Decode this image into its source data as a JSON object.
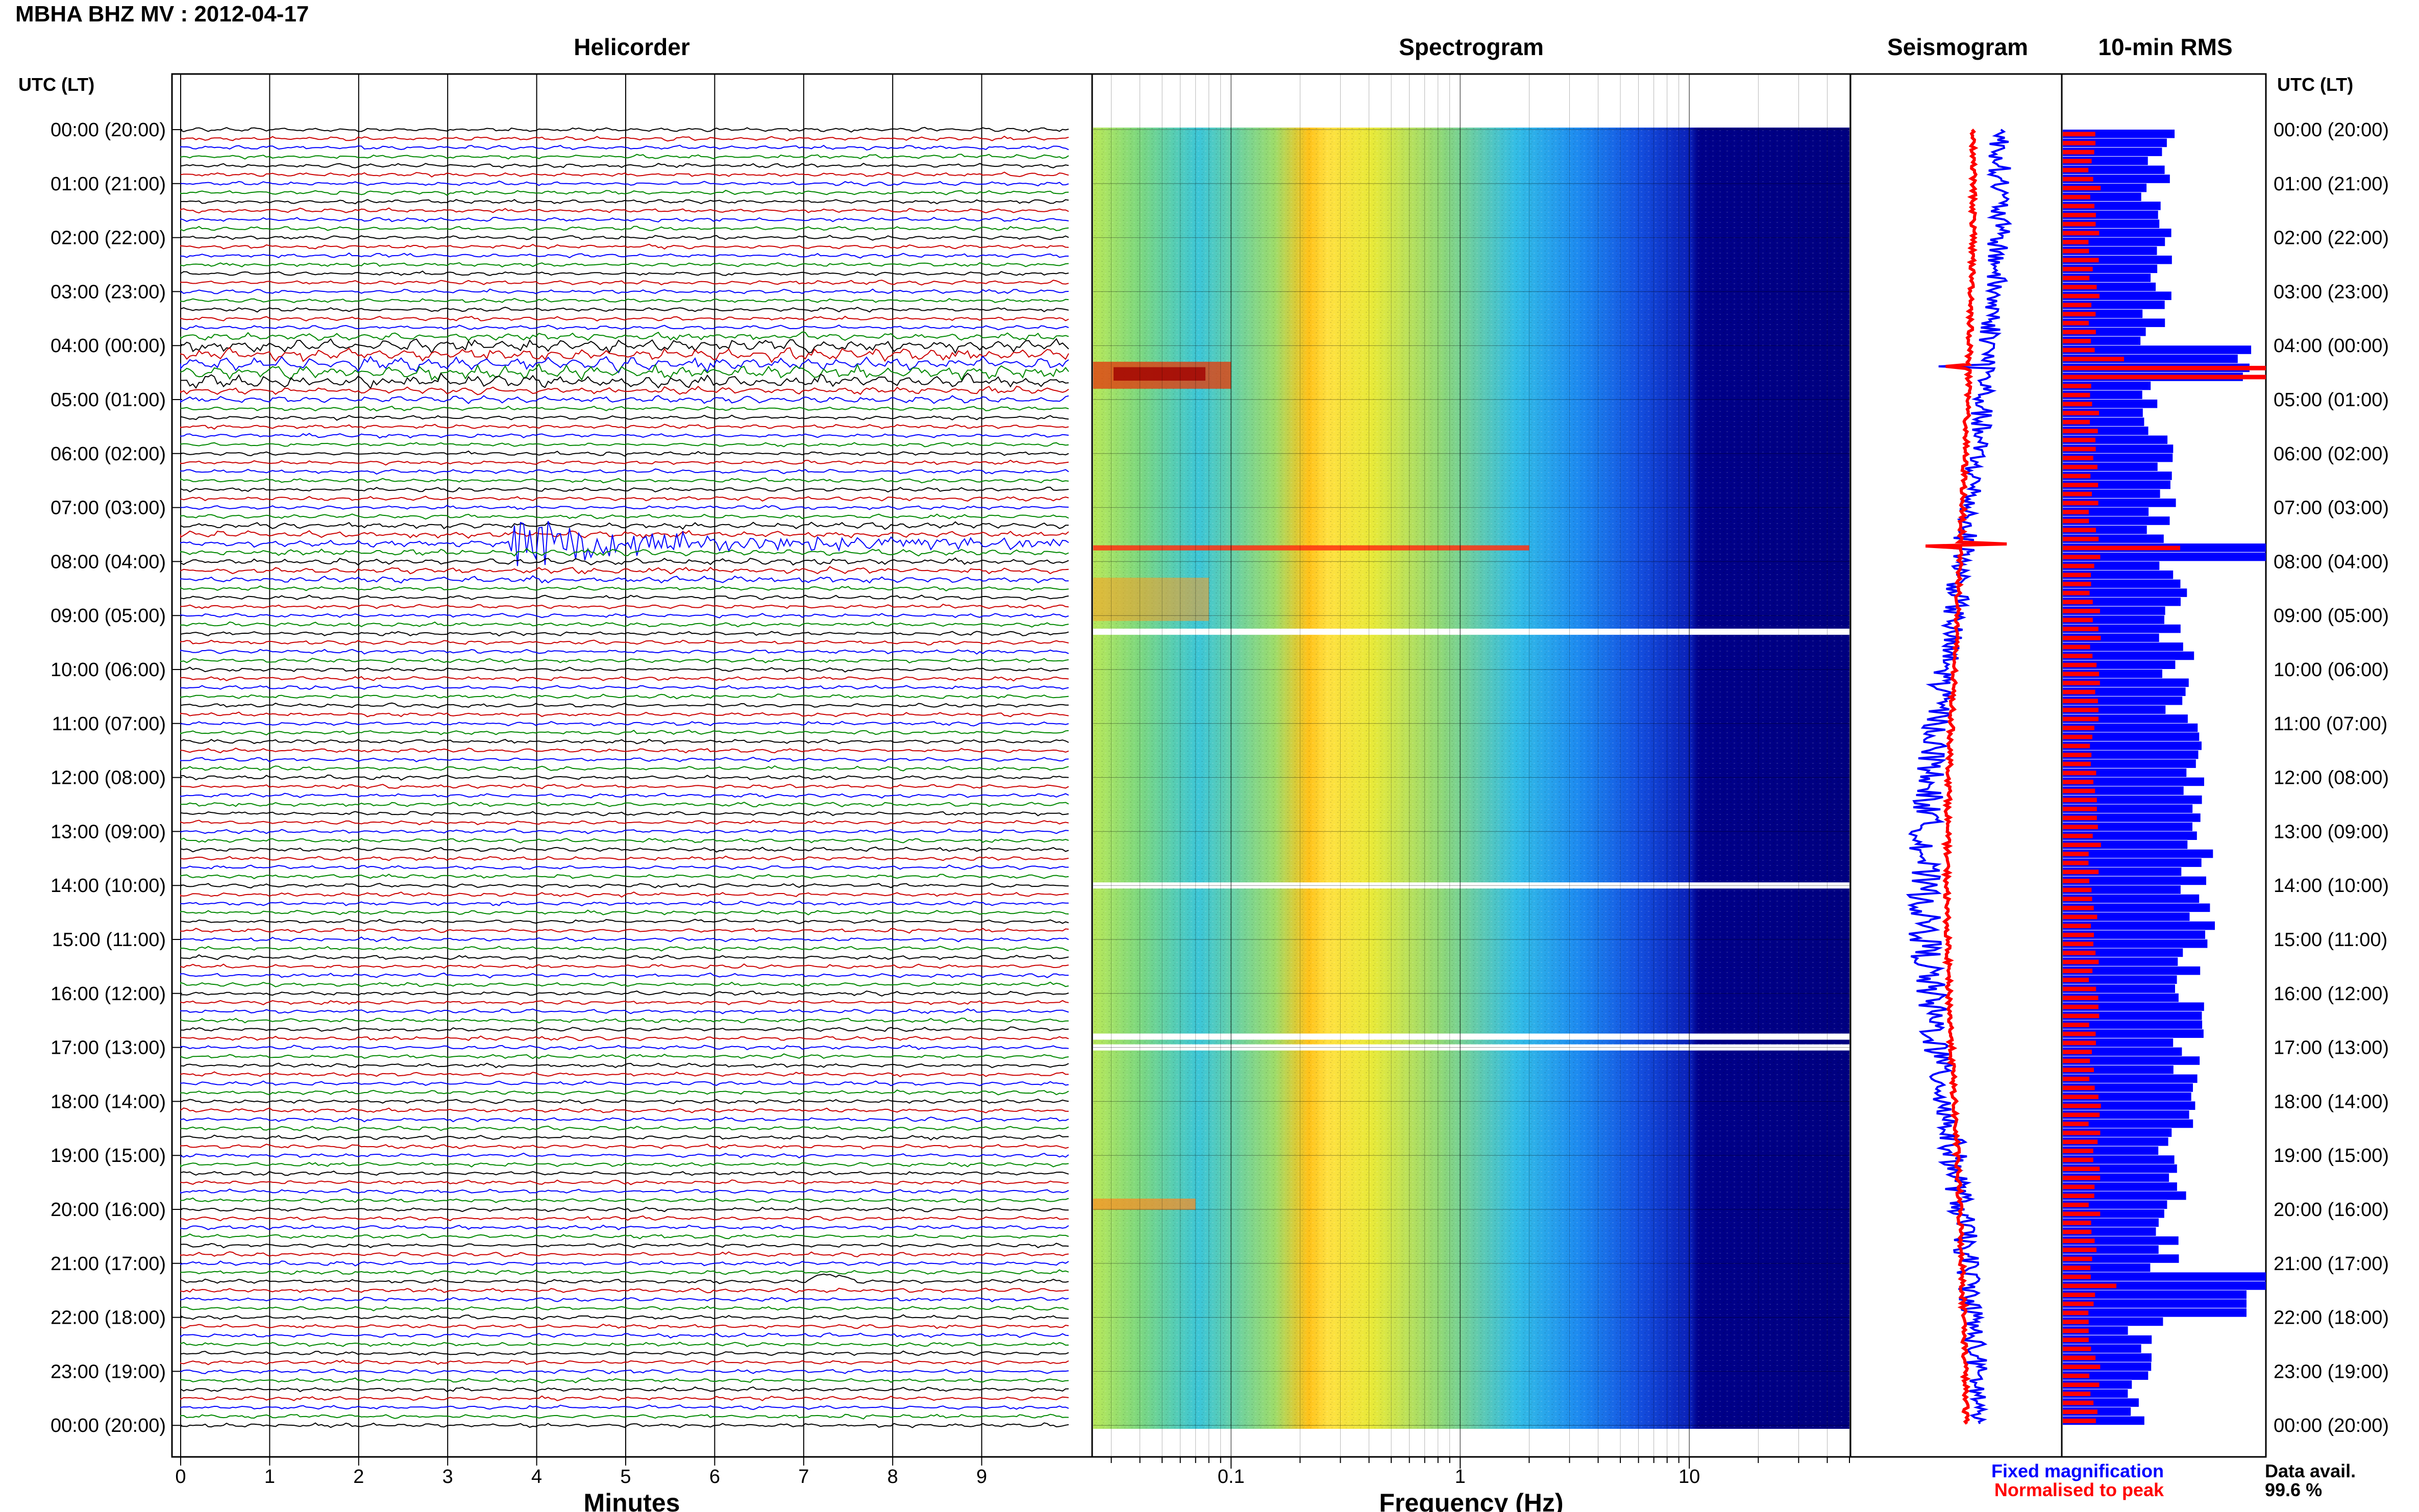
{
  "header": {
    "station_title": "MBHA BHZ MV : 2012-04-17",
    "utc_left_label": "UTC (LT)",
    "utc_right_label": "UTC (LT)"
  },
  "panels": {
    "helicorder_title": "Helicorder",
    "spectrogram_title": "Spectrogram",
    "seismogram_title": "Seismogram",
    "rms_title": "10-min RMS"
  },
  "legend": {
    "fixed": "Fixed magnification",
    "normalised": "Normalised to peak",
    "fixed_color": "#0000ff",
    "normalised_color": "#ff0000"
  },
  "data_availability": {
    "label": "Data avail.",
    "value": "99.6 %"
  },
  "chart_data": [
    {
      "type": "line",
      "name": "helicorder",
      "title": "Helicorder",
      "xlabel": "Minutes",
      "x_ticks": [
        "0",
        "1",
        "2",
        "3",
        "4",
        "5",
        "6",
        "7",
        "8",
        "9"
      ],
      "xlim": [
        0,
        10
      ],
      "y_tick_labels": [
        "00:00 (20:00)",
        "01:00 (21:00)",
        "02:00 (22:00)",
        "03:00 (23:00)",
        "04:00 (00:00)",
        "05:00 (01:00)",
        "06:00 (02:00)",
        "07:00 (03:00)",
        "08:00 (04:00)",
        "09:00 (05:00)",
        "10:00 (06:00)",
        "11:00 (07:00)",
        "12:00 (08:00)",
        "13:00 (09:00)",
        "14:00 (10:00)",
        "15:00 (11:00)",
        "16:00 (12:00)",
        "17:00 (13:00)",
        "18:00 (14:00)",
        "19:00 (15:00)",
        "20:00 (16:00)",
        "21:00 (17:00)",
        "22:00 (18:00)",
        "23:00 (19:00)",
        "00:00 (20:00)"
      ],
      "trace_colors": [
        "#000000",
        "#cc0000",
        "#0000ff",
        "#008800"
      ],
      "lines_per_hour": 6,
      "events": [
        {
          "hour": 4.3,
          "minute": 0,
          "kind": "teleseism-long-period"
        },
        {
          "hour": 7.6,
          "minute": 3.7,
          "kind": "earthquake"
        },
        {
          "hour": 19.0,
          "minute": 5.4,
          "kind": "spike"
        },
        {
          "hour": 21.3,
          "minute": 7.0,
          "kind": "transient"
        }
      ]
    },
    {
      "type": "heatmap",
      "name": "spectrogram",
      "title": "Spectrogram",
      "xlabel": "Frequency (Hz)",
      "x_scale": "log",
      "x_ticks": [
        "0.1",
        "1",
        "10"
      ],
      "xlim": [
        0.025,
        50
      ],
      "colormap": "jet",
      "gaps_hours": [
        9.3,
        14.0,
        16.8,
        17.0
      ]
    },
    {
      "type": "line",
      "name": "seismogram",
      "title": "Seismogram",
      "series": [
        {
          "name": "Fixed magnification",
          "color": "#0000ff"
        },
        {
          "name": "Normalised to peak",
          "color": "#ff0000"
        }
      ]
    },
    {
      "type": "bar",
      "name": "rms",
      "title": "10-min RMS",
      "series": [
        {
          "name": "Fixed magnification",
          "color": "#0000ff"
        },
        {
          "name": "Normalised to peak",
          "color": "#ff0000"
        }
      ]
    }
  ]
}
